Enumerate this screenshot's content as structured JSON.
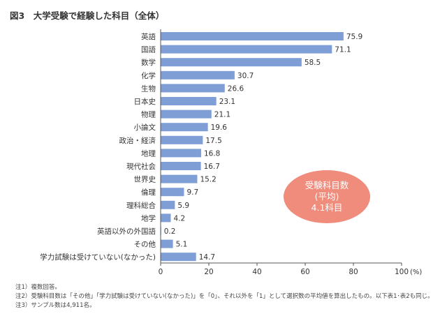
{
  "title": "図3　大学受験で経験した科目（全体）",
  "chart_data": {
    "type": "bar",
    "orientation": "horizontal",
    "categories": [
      "英語",
      "国語",
      "数学",
      "化学",
      "生物",
      "日本史",
      "物理",
      "小論文",
      "政治・経済",
      "地理",
      "現代社会",
      "世界史",
      "倫理",
      "理科総合",
      "地学",
      "英語以外の外国語",
      "その他",
      "学力試験は受けていない(なかった)"
    ],
    "values": [
      75.9,
      71.1,
      58.5,
      30.7,
      26.6,
      23.1,
      21.1,
      19.6,
      17.5,
      16.8,
      16.7,
      15.2,
      9.7,
      5.9,
      4.2,
      0.2,
      5.1,
      14.7
    ],
    "xlim": [
      0,
      100
    ],
    "xticks": [
      0,
      20,
      40,
      60,
      80,
      100
    ],
    "xunit": "(%)",
    "grid": false,
    "bar_color": "#7f9ed6",
    "annotation": {
      "lines": [
        "受験科目数",
        "(平均)",
        "4.1科目"
      ],
      "color": "#f08c7c"
    }
  },
  "notes": [
    "注1）複数回答。",
    "注2）受験科目数は「その他」「学力試験は受けていない(なかった)」を「0」、それ以外を「1」として選択数の平均値を算出したもの。以下表1･表2も同じ。",
    "注3）サンプル数は4,911名。"
  ]
}
